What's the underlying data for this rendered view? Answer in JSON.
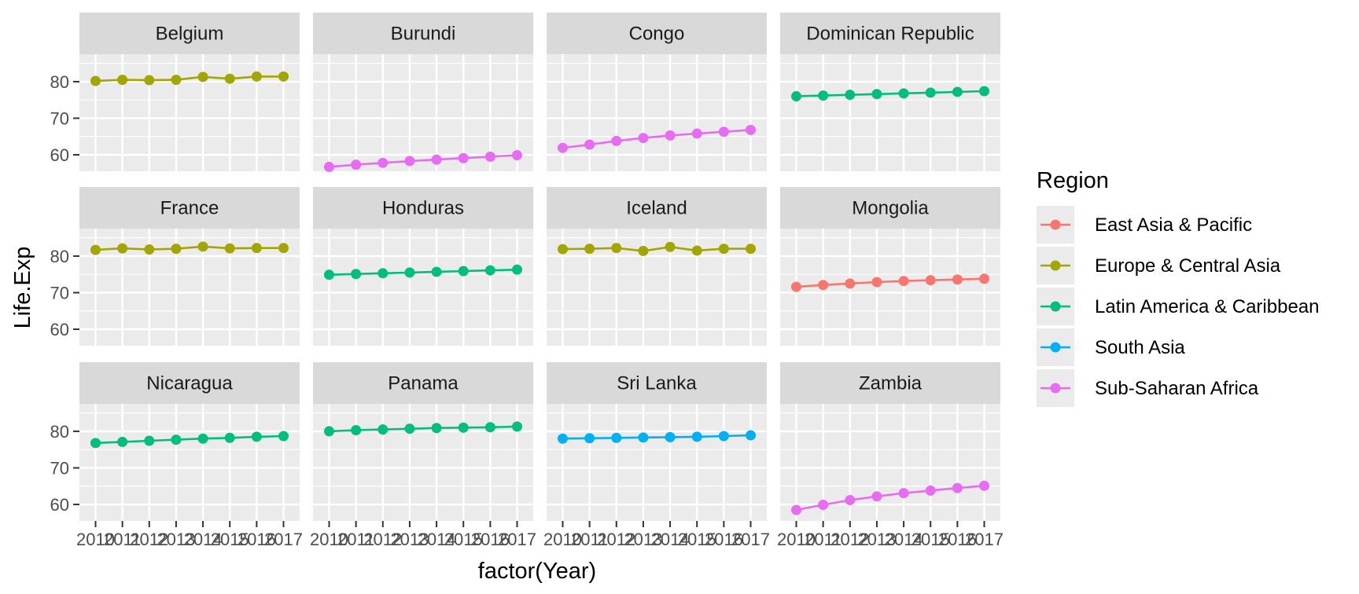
{
  "chart_data": {
    "type": "line",
    "facet_by": "Country",
    "xlabel": "factor(Year)",
    "ylabel": "Life.Exp",
    "categories": [
      "2010",
      "2011",
      "2012",
      "2013",
      "2014",
      "2015",
      "2016",
      "2017"
    ],
    "y_ticks": [
      60,
      70,
      80
    ],
    "ylim": [
      55.5,
      87.5
    ],
    "grid": true,
    "legend": {
      "title": "Region",
      "placement": "right",
      "entries": [
        {
          "name": "East Asia & Pacific",
          "color": "#F8766D"
        },
        {
          "name": "Europe & Central Asia",
          "color": "#A3A500"
        },
        {
          "name": "Latin America & Caribbean",
          "color": "#00BF7D"
        },
        {
          "name": "South Asia",
          "color": "#00B0F6"
        },
        {
          "name": "Sub-Saharan Africa",
          "color": "#E76BF3"
        }
      ]
    },
    "panels": [
      {
        "country": "Belgium",
        "region": "Europe & Central Asia",
        "values": [
          80.2,
          80.5,
          80.4,
          80.5,
          81.3,
          80.8,
          81.4,
          81.4
        ]
      },
      {
        "country": "Burundi",
        "region": "Sub-Saharan Africa",
        "values": [
          56.7,
          57.3,
          57.8,
          58.3,
          58.7,
          59.1,
          59.5,
          59.9
        ]
      },
      {
        "country": "Congo",
        "region": "Sub-Saharan Africa",
        "values": [
          61.9,
          62.8,
          63.8,
          64.6,
          65.3,
          65.8,
          66.3,
          66.8
        ]
      },
      {
        "country": "Dominican Republic",
        "region": "Latin America & Caribbean",
        "values": [
          76.0,
          76.2,
          76.4,
          76.6,
          76.8,
          77.0,
          77.2,
          77.4
        ]
      },
      {
        "country": "France",
        "region": "Europe & Central Asia",
        "values": [
          81.7,
          82.1,
          81.8,
          82.0,
          82.6,
          82.1,
          82.2,
          82.2
        ]
      },
      {
        "country": "Honduras",
        "region": "Latin America & Caribbean",
        "values": [
          74.9,
          75.1,
          75.3,
          75.5,
          75.7,
          75.9,
          76.1,
          76.3
        ]
      },
      {
        "country": "Iceland",
        "region": "Europe & Central Asia",
        "values": [
          81.9,
          82.0,
          82.2,
          81.4,
          82.5,
          81.5,
          82.0,
          82.0
        ]
      },
      {
        "country": "Mongolia",
        "region": "East Asia & Pacific",
        "values": [
          71.6,
          72.1,
          72.5,
          72.9,
          73.2,
          73.4,
          73.6,
          73.8
        ]
      },
      {
        "country": "Nicaragua",
        "region": "Latin America & Caribbean",
        "values": [
          76.8,
          77.1,
          77.4,
          77.7,
          78.0,
          78.2,
          78.5,
          78.7
        ]
      },
      {
        "country": "Panama",
        "region": "Latin America & Caribbean",
        "values": [
          80.0,
          80.3,
          80.5,
          80.7,
          80.9,
          81.0,
          81.1,
          81.3
        ]
      },
      {
        "country": "Sri Lanka",
        "region": "South Asia",
        "values": [
          78.0,
          78.1,
          78.2,
          78.3,
          78.4,
          78.5,
          78.7,
          78.9
        ]
      },
      {
        "country": "Zambia",
        "region": "Sub-Saharan Africa",
        "values": [
          58.5,
          59.9,
          61.2,
          62.2,
          63.1,
          63.8,
          64.5,
          65.1
        ]
      }
    ]
  }
}
